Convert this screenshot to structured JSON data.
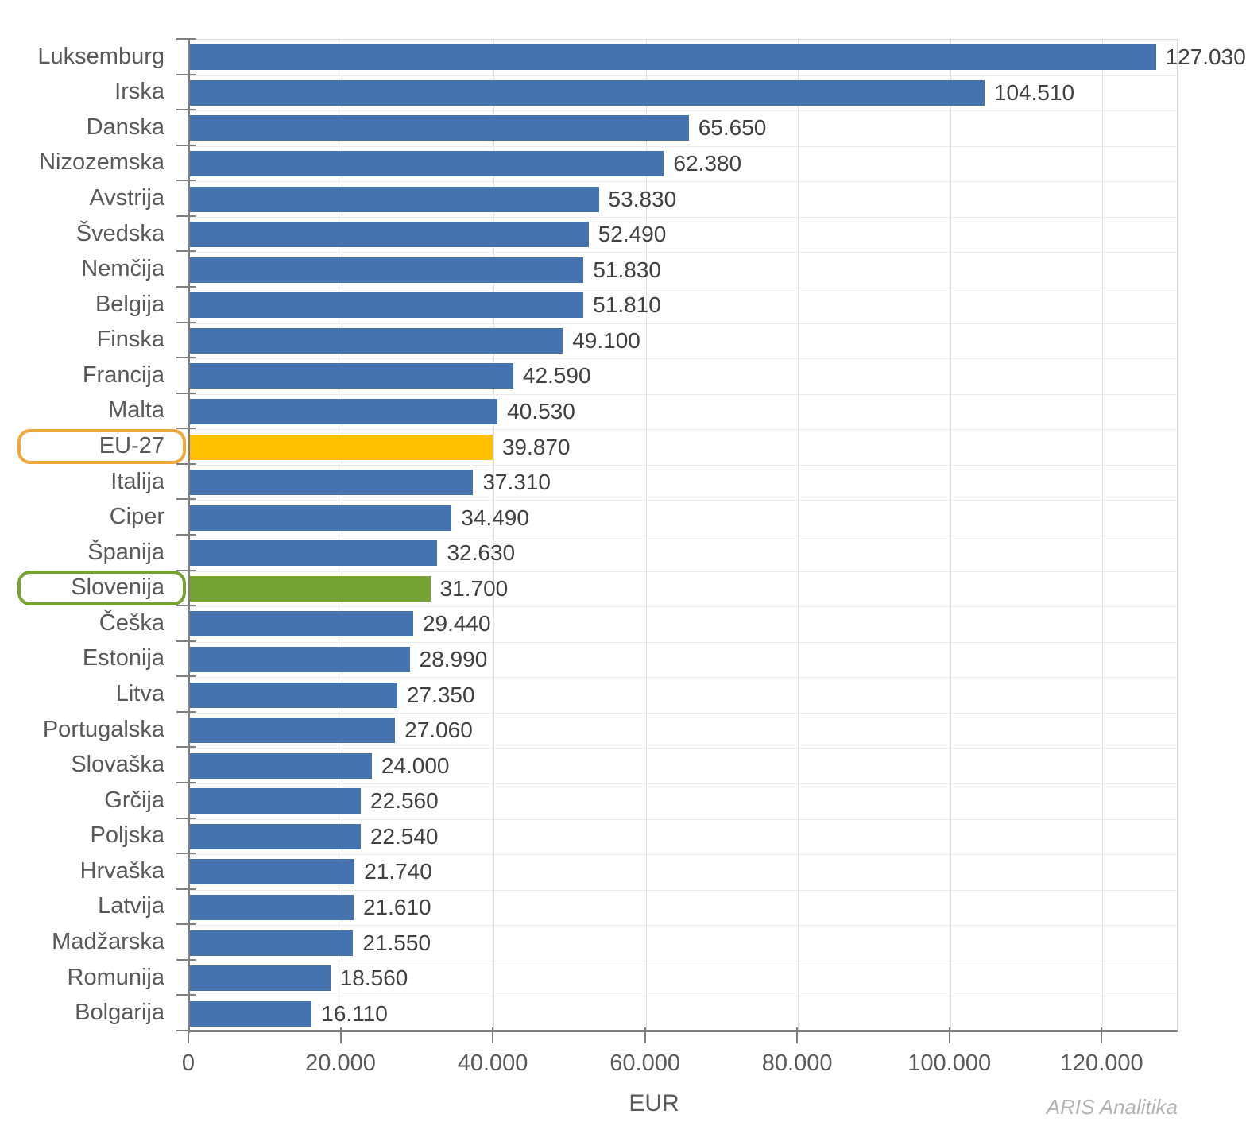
{
  "chart_data": {
    "type": "bar",
    "orientation": "horizontal",
    "title": "",
    "xlabel": "EUR",
    "footer": "ARIS Analitika",
    "xlim": [
      0,
      130000
    ],
    "grid": true,
    "x_axis": {
      "label": "EUR",
      "ticks": [
        {
          "v": 0,
          "label": "0"
        },
        {
          "v": 20000,
          "label": "20.000"
        },
        {
          "v": 40000,
          "label": "40.000"
        },
        {
          "v": 60000,
          "label": "60.000"
        },
        {
          "v": 80000,
          "label": "80.000"
        },
        {
          "v": 100000,
          "label": "100.000"
        },
        {
          "v": 120000,
          "label": "120.000"
        }
      ]
    },
    "palette": {
      "default": "#4473af",
      "eu": "#ffc000",
      "slovenia": "#76a234"
    },
    "box_colors": {
      "eu": "#efa83a",
      "slovenia": "#76a234"
    },
    "countries": [
      {
        "name": "Luksemburg",
        "value": 127030,
        "label": "127.030",
        "color": "default"
      },
      {
        "name": "Irska",
        "value": 104510,
        "label": "104.510",
        "color": "default"
      },
      {
        "name": "Danska",
        "value": 65650,
        "label": "65.650",
        "color": "default"
      },
      {
        "name": "Nizozemska",
        "value": 62380,
        "label": "62.380",
        "color": "default"
      },
      {
        "name": "Avstrija",
        "value": 53830,
        "label": "53.830",
        "color": "default"
      },
      {
        "name": "Švedska",
        "value": 52490,
        "label": "52.490",
        "color": "default"
      },
      {
        "name": "Nemčija",
        "value": 51830,
        "label": "51.830",
        "color": "default"
      },
      {
        "name": "Belgija",
        "value": 51810,
        "label": "51.810",
        "color": "default"
      },
      {
        "name": "Finska",
        "value": 49100,
        "label": "49.100",
        "color": "default"
      },
      {
        "name": "Francija",
        "value": 42590,
        "label": "42.590",
        "color": "default"
      },
      {
        "name": "Malta",
        "value": 40530,
        "label": "40.530",
        "color": "default"
      },
      {
        "name": "EU-27",
        "value": 39870,
        "label": "39.870",
        "color": "eu",
        "box": "eu"
      },
      {
        "name": "Italija",
        "value": 37310,
        "label": "37.310",
        "color": "default"
      },
      {
        "name": "Ciper",
        "value": 34490,
        "label": "34.490",
        "color": "default"
      },
      {
        "name": "Španija",
        "value": 32630,
        "label": "32.630",
        "color": "default"
      },
      {
        "name": "Slovenija",
        "value": 31700,
        "label": "31.700",
        "color": "slovenia",
        "box": "slovenia"
      },
      {
        "name": "Češka",
        "value": 29440,
        "label": "29.440",
        "color": "default"
      },
      {
        "name": "Estonija",
        "value": 28990,
        "label": "28.990",
        "color": "default"
      },
      {
        "name": "Litva",
        "value": 27350,
        "label": "27.350",
        "color": "default"
      },
      {
        "name": "Portugalska",
        "value": 27060,
        "label": "27.060",
        "color": "default"
      },
      {
        "name": "Slovaška",
        "value": 24000,
        "label": "24.000",
        "color": "default"
      },
      {
        "name": "Grčija",
        "value": 22560,
        "label": "22.560",
        "color": "default"
      },
      {
        "name": "Poljska",
        "value": 22540,
        "label": "22.540",
        "color": "default"
      },
      {
        "name": "Hrvaška",
        "value": 21740,
        "label": "21.740",
        "color": "default"
      },
      {
        "name": "Latvija",
        "value": 21610,
        "label": "21.610",
        "color": "default"
      },
      {
        "name": "Madžarska",
        "value": 21550,
        "label": "21.550",
        "color": "default"
      },
      {
        "name": "Romunija",
        "value": 18560,
        "label": "18.560",
        "color": "default"
      },
      {
        "name": "Bolgarija",
        "value": 16110,
        "label": "16.110",
        "color": "default"
      }
    ]
  }
}
